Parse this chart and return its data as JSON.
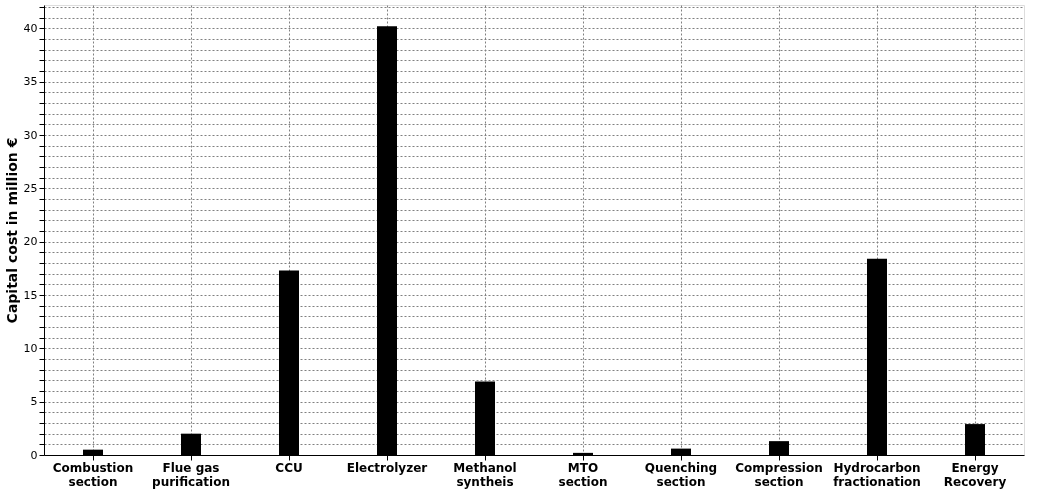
{
  "chart_data": {
    "type": "bar",
    "ylabel": "Capital cost in million €",
    "categories": [
      "Combustion\nsection",
      "Flue gas\npurification",
      "CCU",
      "Electrolyzer",
      "Methanol\nsyntheis",
      "MTO\nsection",
      "Quenching\nsection",
      "Compression\nsection",
      "Hydrocarbon\nfractionation",
      "Energy\nRecovery"
    ],
    "values": [
      0.5,
      2.0,
      17.3,
      40.2,
      6.9,
      0.2,
      0.6,
      1.3,
      18.4,
      2.9
    ],
    "color": "#000000",
    "ylim": [
      0,
      42.2
    ],
    "yticks": [
      0,
      {
        "value": 1,
        "label": null
      },
      {
        "value": 2,
        "label": null
      },
      {
        "value": 3,
        "label": null
      },
      {
        "value": 4,
        "label": null
      },
      5,
      {
        "value": 6,
        "label": null
      },
      {
        "value": 7,
        "label": null
      },
      {
        "value": 8,
        "label": null
      },
      {
        "value": 9,
        "label": null
      },
      10,
      {
        "value": 11,
        "label": null
      },
      {
        "value": 12,
        "label": null
      },
      {
        "value": 13,
        "label": null
      },
      {
        "value": 14,
        "label": null
      },
      15,
      {
        "value": 16,
        "label": null
      },
      {
        "value": 17,
        "label": null
      },
      {
        "value": 18,
        "label": null
      },
      {
        "value": 19,
        "label": null
      },
      20,
      {
        "value": 21,
        "label": null
      },
      {
        "value": 22,
        "label": null
      },
      {
        "value": 23,
        "label": null
      },
      {
        "value": 24,
        "label": null
      },
      25,
      {
        "value": 26,
        "label": null
      },
      {
        "value": 27,
        "label": null
      },
      {
        "value": 28,
        "label": null
      },
      {
        "value": 29,
        "label": null
      },
      30,
      {
        "value": 31,
        "label": null
      },
      {
        "value": 32,
        "label": null
      },
      {
        "value": 33,
        "label": null
      },
      {
        "value": 34,
        "label": null
      },
      35,
      {
        "value": 36,
        "label": null
      },
      {
        "value": 37,
        "label": null
      },
      {
        "value": 38,
        "label": null
      },
      {
        "value": 39,
        "label": null
      },
      40,
      {
        "value": 41,
        "label": null
      },
      {
        "value": 42,
        "label": null
      }
    ],
    "grid": true
  }
}
